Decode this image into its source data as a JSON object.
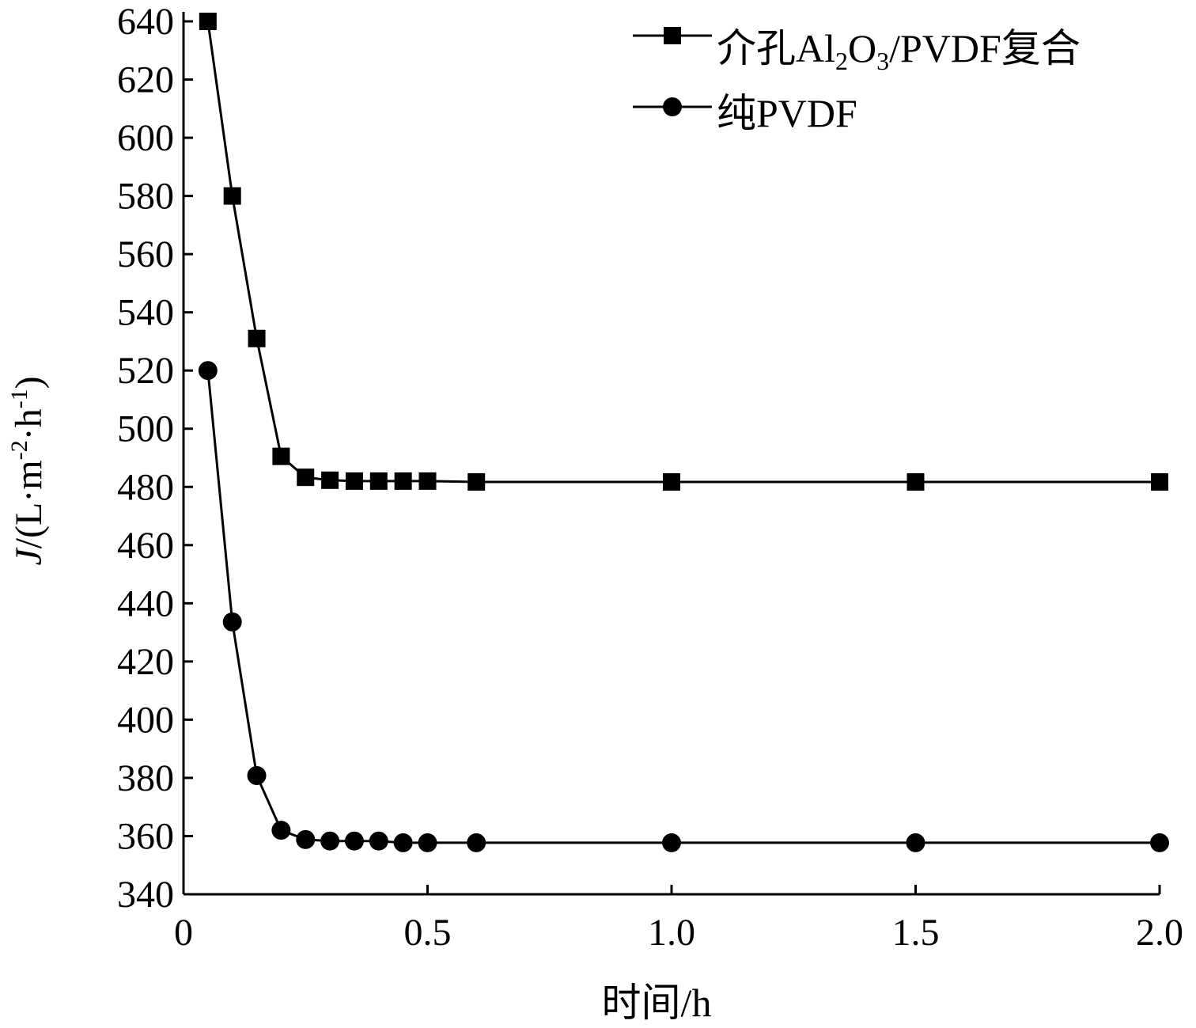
{
  "chart_data": {
    "type": "line",
    "xlabel": "时间/h",
    "ylabel": {
      "var": "J",
      "a": "/(L·m",
      "exp1": "-2",
      "b": "·h",
      "exp2": "-1",
      "c": ")"
    },
    "xlim": [
      0,
      2.0
    ],
    "ylim": [
      340,
      640
    ],
    "xticks": [
      0,
      0.5,
      1.0,
      1.5,
      2.0
    ],
    "xtick_labels": [
      "0",
      "0.5",
      "1.0",
      "1.5",
      "2.0"
    ],
    "yticks": [
      340,
      360,
      380,
      400,
      420,
      440,
      460,
      480,
      500,
      520,
      540,
      560,
      580,
      600,
      620,
      640
    ],
    "ytick_labels": [
      "340",
      "360",
      "380",
      "400",
      "420",
      "440",
      "460",
      "480",
      "500",
      "520",
      "540",
      "560",
      "580",
      "600",
      "620",
      "640"
    ],
    "grid": false,
    "legend_position": "top-right",
    "series": [
      {
        "name": "介孔Al2O3/PVDF复合",
        "legend": {
          "a": "介孔Al",
          "s1": "2",
          "b": "O",
          "s2": "3",
          "c": "/PVDF复合"
        },
        "marker": "square",
        "x": [
          0.05,
          0.1,
          0.15,
          0.2,
          0.25,
          0.3,
          0.35,
          0.4,
          0.45,
          0.5,
          0.6,
          1.0,
          1.5,
          2.0
        ],
        "y": [
          640,
          580,
          531,
          490.5,
          483.3,
          482.3,
          482,
          482,
          482,
          482,
          481.7,
          481.7,
          481.7,
          481.7
        ]
      },
      {
        "name": "纯PVDF",
        "legend": {
          "a": "纯PVDF"
        },
        "marker": "circle",
        "x": [
          0.05,
          0.1,
          0.15,
          0.2,
          0.25,
          0.3,
          0.35,
          0.4,
          0.45,
          0.5,
          0.6,
          1.0,
          1.5,
          2.0
        ],
        "y": [
          520,
          433.6,
          380.8,
          362,
          358.8,
          358.3,
          358.3,
          358.3,
          357.7,
          357.7,
          357.7,
          357.7,
          357.7,
          357.7
        ]
      }
    ]
  }
}
